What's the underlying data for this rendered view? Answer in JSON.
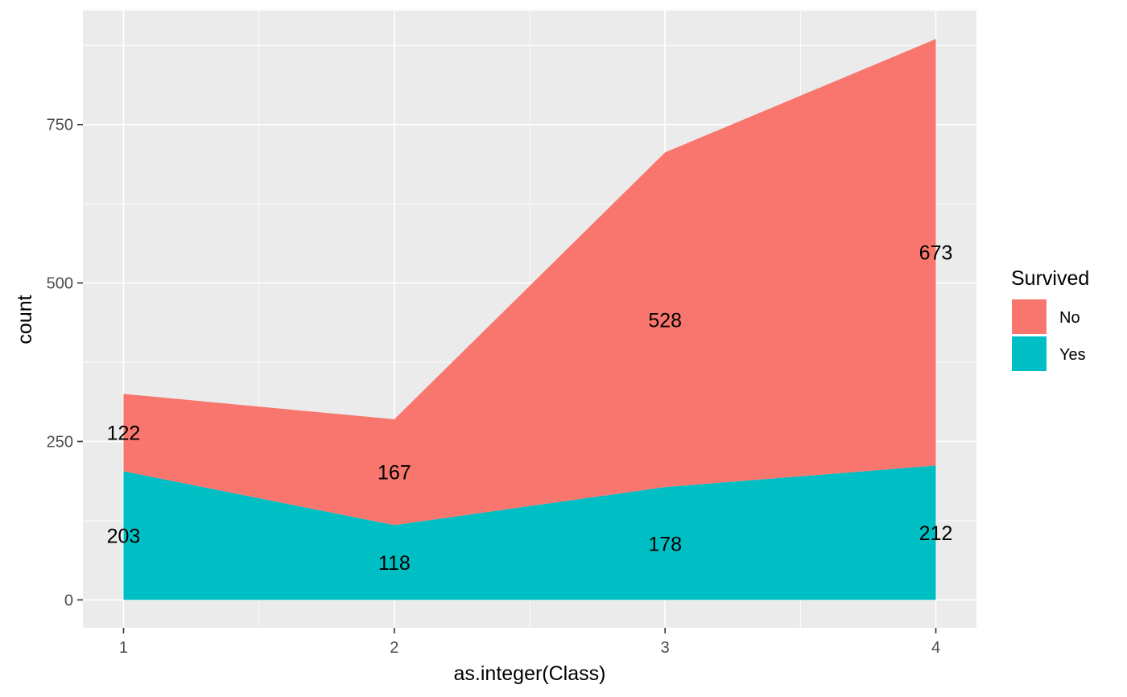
{
  "chart_data": {
    "type": "area",
    "stacked": true,
    "x": [
      1,
      2,
      3,
      4
    ],
    "xlabel": "as.integer(Class)",
    "ylabel": "count",
    "xlim": [
      0.85,
      4.15
    ],
    "ylim": [
      -44,
      930
    ],
    "x_ticks": [
      1,
      2,
      3,
      4
    ],
    "y_ticks": [
      0,
      250,
      500,
      750
    ],
    "grid": true,
    "legend": {
      "title": "Survived",
      "position": "right"
    },
    "series": [
      {
        "name": "No",
        "values": [
          122,
          167,
          528,
          673
        ],
        "color": "#F8766D"
      },
      {
        "name": "Yes",
        "values": [
          203,
          118,
          178,
          212
        ],
        "color": "#00BFC4"
      }
    ]
  }
}
